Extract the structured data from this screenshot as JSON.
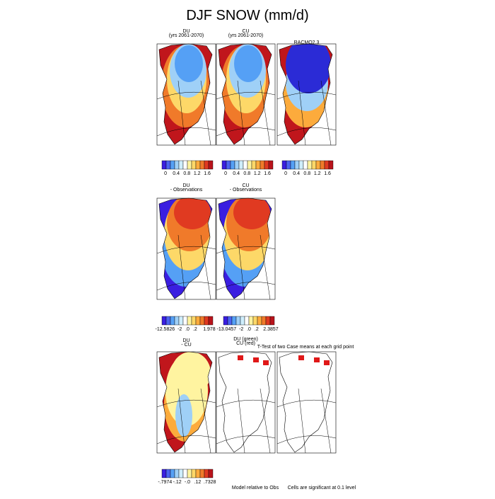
{
  "title": "DJF SNOW (mm/d)",
  "panels": [
    {
      "title": [
        "DU",
        "(yrs 2061-2070)"
      ]
    },
    {
      "title": [
        "CU",
        "(yrs 2061-2070)"
      ]
    },
    {
      "title": [
        "RACMO2.3"
      ]
    },
    {
      "title": [
        "DU",
        "- Observations"
      ]
    },
    {
      "title": [
        "CU",
        "- Observations"
      ]
    },
    {
      "title": [
        "DU",
        "- CU"
      ]
    },
    {
      "title": [
        "DU (green)",
        "CU (red)"
      ]
    },
    {
      "title": [
        "T-Test of two Case means at each grid point"
      ]
    }
  ],
  "colorbars": [
    {
      "labels": [
        "0",
        "0.4",
        "0.8",
        "1.2",
        "1.6"
      ]
    },
    {
      "labels": [
        "0",
        "0.4",
        "0.8",
        "1.2",
        "1.6"
      ]
    },
    {
      "labels": [
        "0",
        "0.4",
        "0.8",
        "1.2",
        "1.6"
      ]
    },
    {
      "labels": [
        "-12.5826",
        "-2",
        ".0",
        ".2",
        "1.978"
      ]
    },
    {
      "labels": [
        "-13.0457",
        "-2",
        ".0",
        ".2",
        "2.3857"
      ]
    },
    {
      "labels": [
        "-.7974",
        "-.12",
        "-.0",
        ".12",
        ".7328"
      ]
    }
  ],
  "notes": [
    "Model relative to Obs",
    "Cells are significant at 0.1 level"
  ]
}
